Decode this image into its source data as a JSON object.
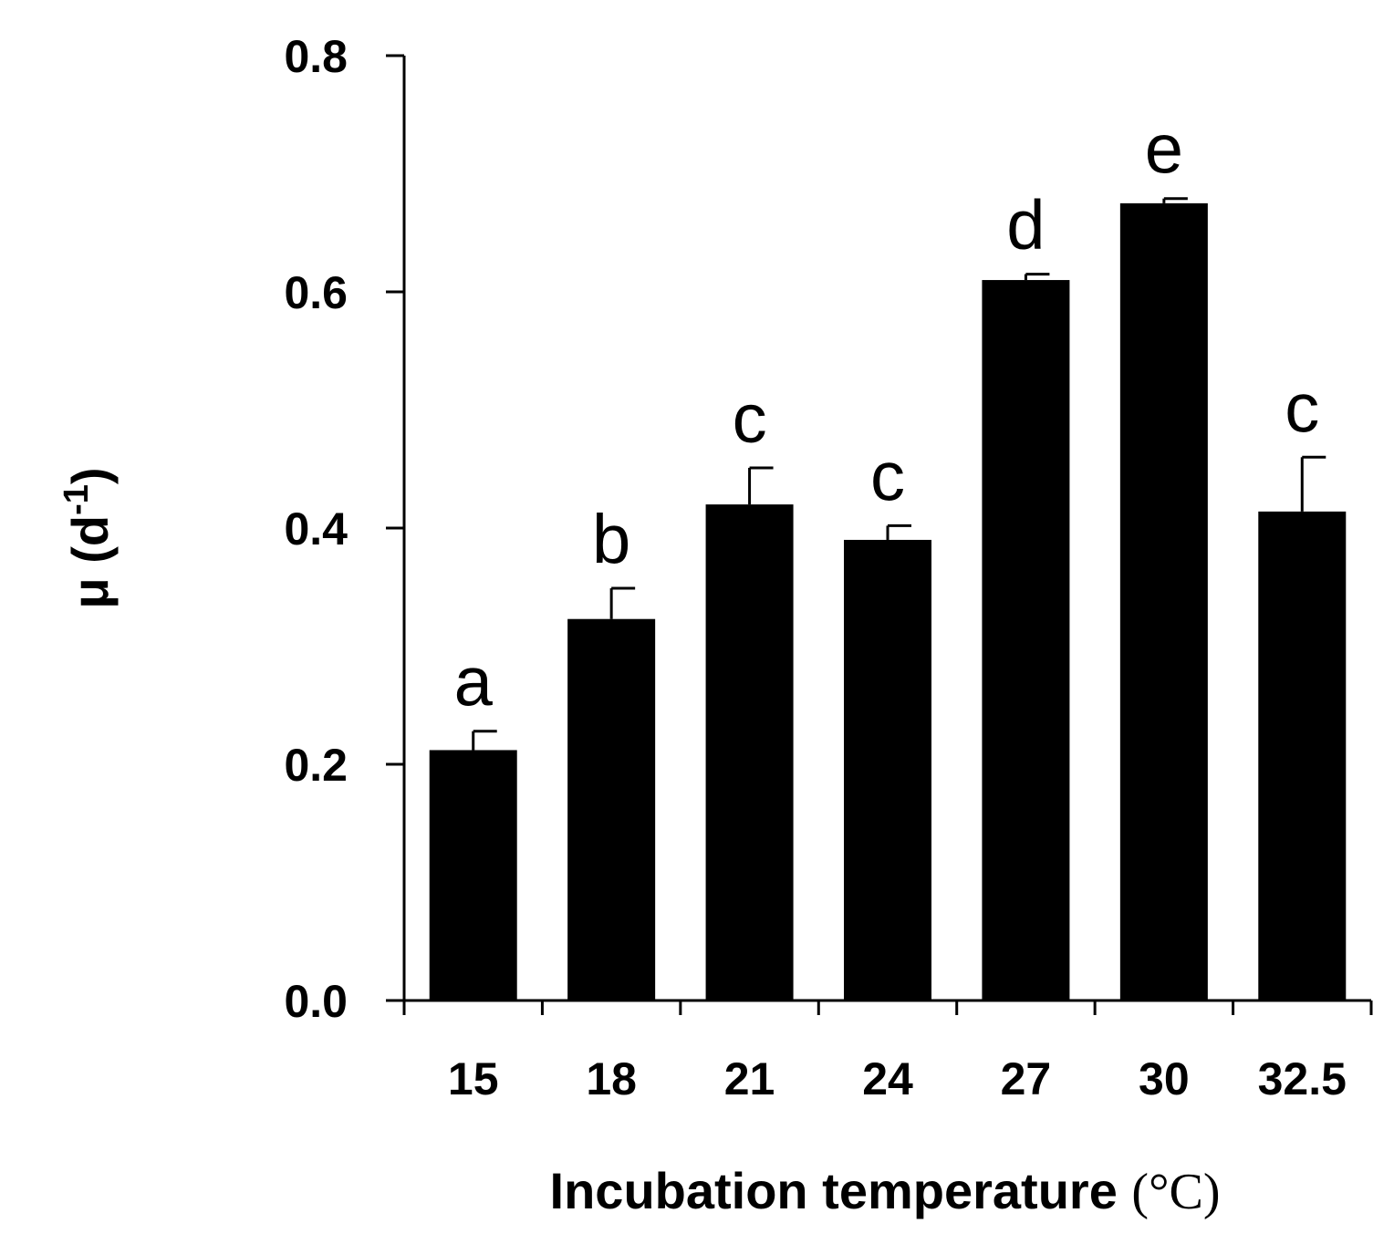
{
  "chart_data": {
    "type": "bar",
    "categories": [
      "15",
      "18",
      "21",
      "24",
      "27",
      "30",
      "32.5"
    ],
    "values": [
      0.212,
      0.323,
      0.42,
      0.39,
      0.61,
      0.675,
      0.414
    ],
    "errors": [
      0.016,
      0.026,
      0.031,
      0.012,
      0.005,
      0.004,
      0.046
    ],
    "significance_letters": [
      "a",
      "b",
      "c",
      "c",
      "d",
      "e",
      "c"
    ],
    "title": "",
    "xlabel": "Incubation temperature",
    "xlabel_unit": "(°C)",
    "ylabel_prefix": "μ (d",
    "ylabel_superscript": "-1",
    "ylabel_suffix": ")",
    "ylim": [
      0,
      0.8
    ],
    "yticks": [
      "0.0",
      "0.2",
      "0.4",
      "0.6",
      "0.8"
    ],
    "bar_color": "#000000",
    "grid": false
  }
}
